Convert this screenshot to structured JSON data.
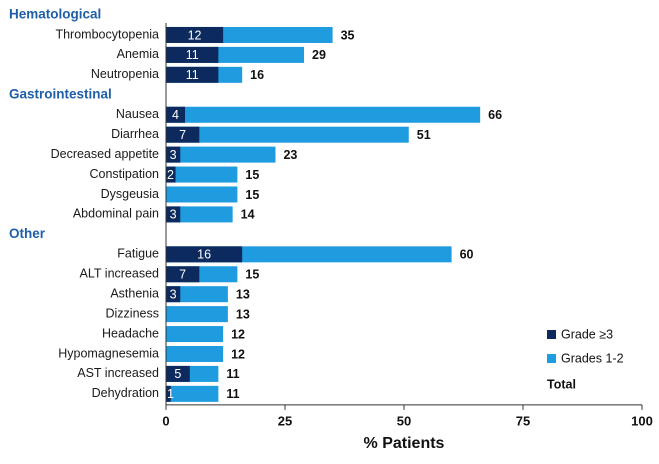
{
  "chart_data": {
    "type": "bar",
    "orientation": "horizontal",
    "stacked": true,
    "xlabel": "% Patients",
    "xlim": [
      0,
      100
    ],
    "xticks": [
      0,
      25,
      50,
      75,
      100
    ],
    "grid": false,
    "legend_position": "bottom-right",
    "colors": {
      "grade3": "#0d2a5e",
      "grade12": "#1f9be0",
      "group_heading": "#1f5fa8"
    },
    "series": [
      {
        "key": "grade3",
        "name": "Grade ≥3"
      },
      {
        "key": "grade12",
        "name": "Grades 1-2"
      }
    ],
    "legend_total_label": "Total",
    "groups": [
      {
        "name": "Hematological",
        "items": [
          {
            "label": "Thrombocytopenia",
            "grade3": 12,
            "total": 35
          },
          {
            "label": "Anemia",
            "grade3": 11,
            "total": 29
          },
          {
            "label": "Neutropenia",
            "grade3": 11,
            "total": 16
          }
        ]
      },
      {
        "name": "Gastrointestinal",
        "items": [
          {
            "label": "Nausea",
            "grade3": 4,
            "total": 66
          },
          {
            "label": "Diarrhea",
            "grade3": 7,
            "total": 51
          },
          {
            "label": "Decreased appetite",
            "grade3": 3,
            "total": 23
          },
          {
            "label": "Constipation",
            "grade3": 2,
            "total": 15
          },
          {
            "label": "Dysgeusia",
            "grade3": 0,
            "total": 15
          },
          {
            "label": "Abdominal pain",
            "grade3": 3,
            "total": 14
          }
        ]
      },
      {
        "name": "Other",
        "items": [
          {
            "label": "Fatigue",
            "grade3": 16,
            "total": 60
          },
          {
            "label": "ALT increased",
            "grade3": 7,
            "total": 15
          },
          {
            "label": "Asthenia",
            "grade3": 3,
            "total": 13
          },
          {
            "label": "Dizziness",
            "grade3": 0,
            "total": 13
          },
          {
            "label": "Headache",
            "grade3": 0,
            "total": 12
          },
          {
            "label": "Hypomagnesemia",
            "grade3": 0,
            "total": 12
          },
          {
            "label": "AST increased",
            "grade3": 5,
            "total": 11
          },
          {
            "label": "Dehydration",
            "grade3": 1,
            "total": 11
          }
        ]
      }
    ]
  }
}
